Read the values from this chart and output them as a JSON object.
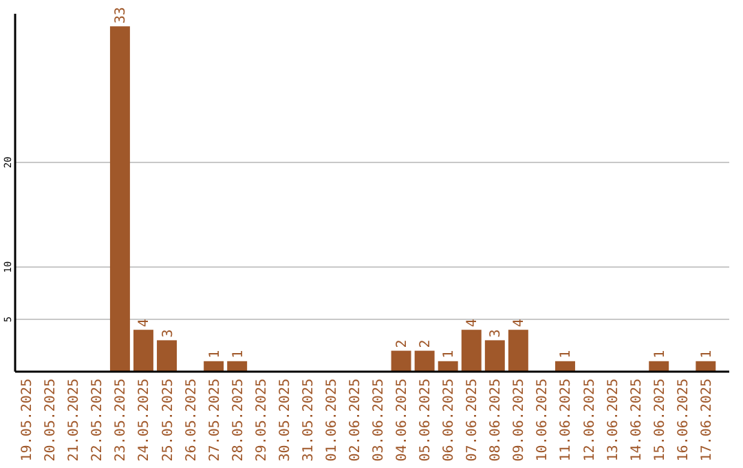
{
  "chart_data": {
    "type": "bar",
    "categories": [
      "19.05.2025",
      "20.05.2025",
      "21.05.2025",
      "22.05.2025",
      "23.05.2025",
      "24.05.2025",
      "25.05.2025",
      "26.05.2025",
      "27.05.2025",
      "28.05.2025",
      "29.05.2025",
      "30.05.2025",
      "31.05.2025",
      "01.06.2025",
      "02.06.2025",
      "03.06.2025",
      "04.06.2025",
      "05.06.2025",
      "06.06.2025",
      "07.06.2025",
      "08.06.2025",
      "09.06.2025",
      "10.06.2025",
      "11.06.2025",
      "12.06.2025",
      "13.06.2025",
      "14.06.2025",
      "15.06.2025",
      "16.06.2025",
      "17.06.2025"
    ],
    "values": [
      0,
      0,
      0,
      0,
      33,
      4,
      3,
      0,
      1,
      1,
      0,
      0,
      0,
      0,
      0,
      0,
      2,
      2,
      1,
      4,
      3,
      4,
      0,
      1,
      0,
      0,
      0,
      1,
      0,
      1
    ],
    "value_labels": [
      null,
      null,
      null,
      null,
      "33",
      "4",
      "3",
      null,
      "1",
      "1",
      null,
      null,
      null,
      null,
      null,
      null,
      "2",
      "2",
      "1",
      "4",
      "3",
      "4",
      null,
      "1",
      null,
      null,
      null,
      "1",
      null,
      "1"
    ],
    "color": "#a0582a",
    "ylim": [
      0,
      34.2
    ],
    "yticks": [
      5,
      10,
      20
    ],
    "grid": "y"
  }
}
